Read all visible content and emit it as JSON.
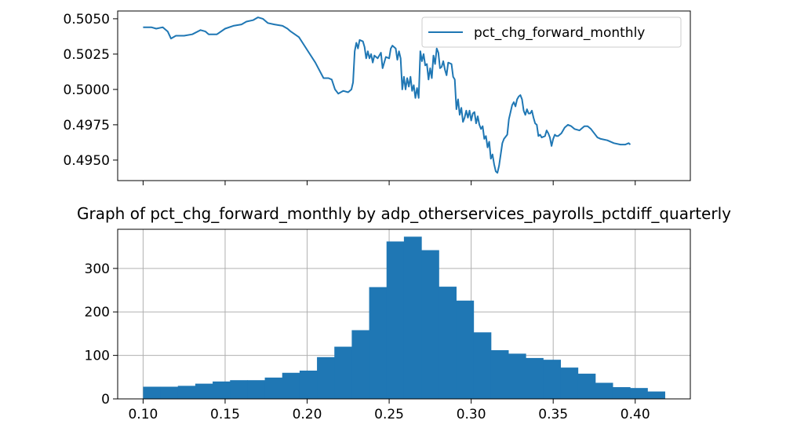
{
  "chart_data": [
    {
      "type": "line",
      "title": "",
      "xlabel": "",
      "ylabel": "",
      "x_tick_labels_shown": false,
      "ylim": [
        0.49355,
        0.50555
      ],
      "yticks": [
        0.495,
        0.4975,
        0.5,
        0.5025,
        0.505
      ],
      "ytick_labels": [
        "0.4950",
        "0.4975",
        "0.5000",
        "0.5025",
        "0.5050"
      ],
      "grid": false,
      "legend": {
        "placement": "upper right",
        "entries": [
          "pct_chg_forward_monthly"
        ]
      },
      "color": "#1f77b4",
      "series": [
        {
          "name": "pct_chg_forward_monthly",
          "points": [
            [
              0.1,
              0.5044
            ],
            [
              0.105,
              0.5044
            ],
            [
              0.108,
              0.5043
            ],
            [
              0.112,
              0.5044
            ],
            [
              0.115,
              0.5041
            ],
            [
              0.117,
              0.5036
            ],
            [
              0.12,
              0.5038
            ],
            [
              0.125,
              0.5038
            ],
            [
              0.13,
              0.5039
            ],
            [
              0.135,
              0.5042
            ],
            [
              0.138,
              0.5041
            ],
            [
              0.14,
              0.5039
            ],
            [
              0.145,
              0.5039
            ],
            [
              0.15,
              0.5043
            ],
            [
              0.155,
              0.5045
            ],
            [
              0.16,
              0.5046
            ],
            [
              0.163,
              0.5048
            ],
            [
              0.167,
              0.5049
            ],
            [
              0.17,
              0.5051
            ],
            [
              0.173,
              0.505
            ],
            [
              0.176,
              0.5047
            ],
            [
              0.18,
              0.5046
            ],
            [
              0.185,
              0.5045
            ],
            [
              0.188,
              0.5043
            ],
            [
              0.19,
              0.5041
            ],
            [
              0.195,
              0.5037
            ],
            [
              0.2,
              0.5028
            ],
            [
              0.205,
              0.5019
            ],
            [
              0.21,
              0.5008
            ],
            [
              0.213,
              0.5008
            ],
            [
              0.215,
              0.5007
            ],
            [
              0.217,
              0.5
            ],
            [
              0.219,
              0.4997
            ],
            [
              0.222,
              0.4999
            ],
            [
              0.225,
              0.4998
            ],
            [
              0.227,
              0.5
            ],
            [
              0.228,
              0.5005
            ],
            [
              0.229,
              0.5027
            ],
            [
              0.23,
              0.5033
            ],
            [
              0.231,
              0.5029
            ],
            [
              0.232,
              0.5035
            ],
            [
              0.234,
              0.5034
            ],
            [
              0.235,
              0.503
            ],
            [
              0.236,
              0.5022
            ],
            [
              0.237,
              0.5027
            ],
            [
              0.238,
              0.5022
            ],
            [
              0.239,
              0.5025
            ],
            [
              0.24,
              0.5019
            ],
            [
              0.241,
              0.5024
            ],
            [
              0.243,
              0.5022
            ],
            [
              0.245,
              0.5026
            ],
            [
              0.246,
              0.5015
            ],
            [
              0.248,
              0.5023
            ],
            [
              0.25,
              0.5022
            ],
            [
              0.251,
              0.5029
            ],
            [
              0.252,
              0.5031
            ],
            [
              0.254,
              0.5029
            ],
            [
              0.255,
              0.5021
            ],
            [
              0.256,
              0.5027
            ],
            [
              0.257,
              0.5022
            ],
            [
              0.258,
              0.5
            ],
            [
              0.259,
              0.5009
            ],
            [
              0.26,
              0.5
            ],
            [
              0.261,
              0.5008
            ],
            [
              0.262,
              0.5002
            ],
            [
              0.263,
              0.5009
            ],
            [
              0.264,
              0.4999
            ],
            [
              0.265,
              0.5003
            ],
            [
              0.266,
              0.4994
            ],
            [
              0.267,
              0.5001
            ],
            [
              0.268,
              0.4994
            ],
            [
              0.269,
              0.5027
            ],
            [
              0.27,
              0.502
            ],
            [
              0.271,
              0.5025
            ],
            [
              0.272,
              0.5017
            ],
            [
              0.273,
              0.5018
            ],
            [
              0.274,
              0.5007
            ],
            [
              0.275,
              0.5015
            ],
            [
              0.276,
              0.5008
            ],
            [
              0.277,
              0.5024
            ],
            [
              0.278,
              0.5018
            ],
            [
              0.279,
              0.5029
            ],
            [
              0.28,
              0.5026
            ],
            [
              0.281,
              0.5015
            ],
            [
              0.282,
              0.5016
            ],
            [
              0.283,
              0.502
            ],
            [
              0.284,
              0.5014
            ],
            [
              0.285,
              0.501
            ],
            [
              0.286,
              0.5019
            ],
            [
              0.288,
              0.5018
            ],
            [
              0.289,
              0.5009
            ],
            [
              0.29,
              0.5007
            ],
            [
              0.291,
              0.4986
            ],
            [
              0.292,
              0.4993
            ],
            [
              0.293,
              0.4982
            ],
            [
              0.294,
              0.4987
            ],
            [
              0.295,
              0.4977
            ],
            [
              0.296,
              0.498
            ],
            [
              0.297,
              0.4985
            ],
            [
              0.298,
              0.498
            ],
            [
              0.299,
              0.4985
            ],
            [
              0.3,
              0.4978
            ],
            [
              0.301,
              0.4983
            ],
            [
              0.302,
              0.4984
            ],
            [
              0.303,
              0.4976
            ],
            [
              0.304,
              0.4981
            ],
            [
              0.305,
              0.4975
            ],
            [
              0.306,
              0.4972
            ],
            [
              0.307,
              0.4974
            ],
            [
              0.308,
              0.4965
            ],
            [
              0.309,
              0.4967
            ],
            [
              0.31,
              0.4959
            ],
            [
              0.311,
              0.4963
            ],
            [
              0.312,
              0.4951
            ],
            [
              0.313,
              0.4954
            ],
            [
              0.314,
              0.4947
            ],
            [
              0.315,
              0.4942
            ],
            [
              0.316,
              0.4941
            ],
            [
              0.317,
              0.4946
            ],
            [
              0.318,
              0.4954
            ],
            [
              0.319,
              0.4962
            ],
            [
              0.32,
              0.4965
            ],
            [
              0.322,
              0.4968
            ],
            [
              0.323,
              0.4979
            ],
            [
              0.325,
              0.4989
            ],
            [
              0.326,
              0.4991
            ],
            [
              0.327,
              0.4988
            ],
            [
              0.328,
              0.4993
            ],
            [
              0.329,
              0.4995
            ],
            [
              0.33,
              0.4996
            ],
            [
              0.331,
              0.4993
            ],
            [
              0.332,
              0.4985
            ],
            [
              0.333,
              0.4982
            ],
            [
              0.334,
              0.4986
            ],
            [
              0.335,
              0.4983
            ],
            [
              0.336,
              0.4983
            ],
            [
              0.337,
              0.4985
            ],
            [
              0.338,
              0.498
            ],
            [
              0.339,
              0.4976
            ],
            [
              0.34,
              0.4975
            ],
            [
              0.341,
              0.4967
            ],
            [
              0.342,
              0.4968
            ],
            [
              0.343,
              0.4966
            ],
            [
              0.345,
              0.4967
            ],
            [
              0.346,
              0.4971
            ],
            [
              0.347,
              0.4969
            ],
            [
              0.348,
              0.4966
            ],
            [
              0.349,
              0.496
            ],
            [
              0.35,
              0.4965
            ],
            [
              0.351,
              0.4968
            ],
            [
              0.352,
              0.4967
            ],
            [
              0.353,
              0.4967
            ],
            [
              0.355,
              0.4969
            ],
            [
              0.357,
              0.4973
            ],
            [
              0.359,
              0.4975
            ],
            [
              0.361,
              0.4974
            ],
            [
              0.363,
              0.4972
            ],
            [
              0.366,
              0.4971
            ],
            [
              0.369,
              0.4974
            ],
            [
              0.371,
              0.4974
            ],
            [
              0.373,
              0.4972
            ],
            [
              0.375,
              0.4969
            ],
            [
              0.377,
              0.4966
            ],
            [
              0.379,
              0.4965
            ],
            [
              0.383,
              0.4964
            ],
            [
              0.387,
              0.4962
            ],
            [
              0.391,
              0.4961
            ],
            [
              0.394,
              0.4961
            ],
            [
              0.396,
              0.4962
            ],
            [
              0.397,
              0.4961
            ]
          ]
        }
      ]
    },
    {
      "type": "bar",
      "subtype": "histogram",
      "title": "Graph of pct_chg_forward_monthly by adp_otherservices_payrolls_pctdiff_quarterly",
      "xlabel": "",
      "ylabel": "",
      "xlim": [
        0.0845,
        0.4336
      ],
      "ylim": [
        0,
        390
      ],
      "xticks": [
        0.1,
        0.15,
        0.2,
        0.25,
        0.3,
        0.35,
        0.4
      ],
      "xtick_labels": [
        "0.10",
        "0.15",
        "0.20",
        "0.25",
        "0.30",
        "0.35",
        "0.40"
      ],
      "yticks": [
        0,
        100,
        200,
        300
      ],
      "ytick_labels": [
        "0",
        "100",
        "200",
        "300"
      ],
      "grid": true,
      "color": "#1f77b4",
      "bin_edges": [
        0.1,
        0.1106,
        0.1212,
        0.1318,
        0.1424,
        0.153,
        0.1636,
        0.1742,
        0.1848,
        0.1954,
        0.206,
        0.2166,
        0.2272,
        0.2378,
        0.2484,
        0.259,
        0.2696,
        0.2802,
        0.2908,
        0.3014,
        0.312,
        0.3226,
        0.3332,
        0.3438,
        0.3544,
        0.365,
        0.3756,
        0.3862,
        0.3968,
        0.4074,
        0.418
      ],
      "values": [
        28,
        28,
        30,
        35,
        40,
        43,
        43,
        49,
        60,
        65,
        96,
        120,
        158,
        257,
        362,
        373,
        342,
        258,
        226,
        153,
        112,
        104,
        94,
        90,
        72,
        58,
        37,
        27,
        25,
        17
      ]
    }
  ]
}
